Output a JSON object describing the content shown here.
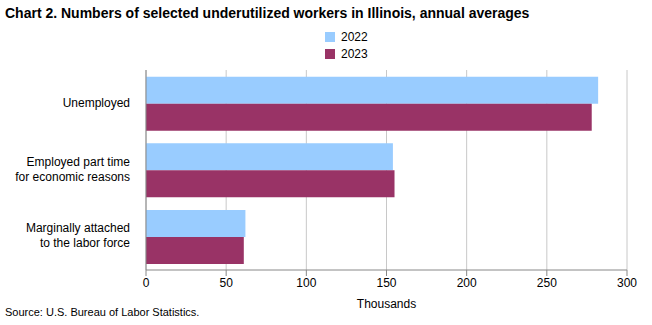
{
  "chart_data": {
    "type": "bar",
    "orientation": "horizontal",
    "title": "Chart 2. Numbers of selected underutilized workers in Illinois, annual averages",
    "x_label": "Thousands",
    "source": "Source: U.S. Bureau of Labor Statistics.",
    "categories": [
      "Unemployed",
      "Employed part time for economic reasons",
      "Marginally attached to the labor force"
    ],
    "series": [
      {
        "name": "2022",
        "color": "#99ccff",
        "values": [
          282,
          154,
          62
        ]
      },
      {
        "name": "2023",
        "color": "#993366",
        "values": [
          278,
          155,
          61
        ]
      }
    ],
    "xlim": [
      0,
      300
    ],
    "xticks": [
      0,
      50,
      100,
      150,
      200,
      250,
      300
    ],
    "grid": true,
    "legend": "top"
  }
}
